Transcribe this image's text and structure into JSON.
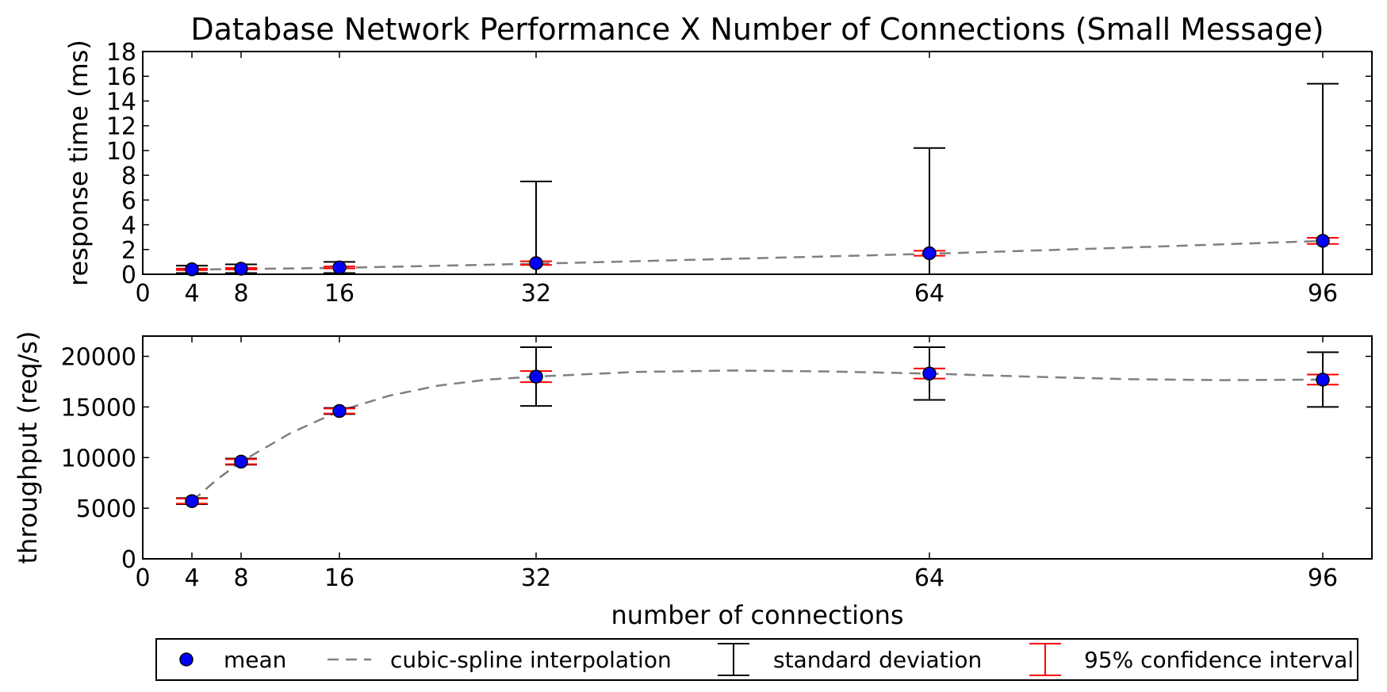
{
  "chart_data": [
    {
      "type": "scatter",
      "title": "Database Network Performance X Number of Connections (Small Message)",
      "xlabel": "",
      "ylabel": "response time (ms)",
      "xlim": [
        0,
        100
      ],
      "ylim": [
        0,
        18
      ],
      "xticks": [
        0,
        4,
        8,
        16,
        32,
        64,
        96
      ],
      "yticks": [
        0,
        2,
        4,
        6,
        8,
        10,
        12,
        14,
        16,
        18
      ],
      "x": [
        4,
        8,
        16,
        32,
        64,
        96
      ],
      "mean": [
        0.4,
        0.45,
        0.55,
        0.9,
        1.7,
        2.7
      ],
      "std": [
        0.3,
        0.35,
        0.45,
        6.6,
        8.5,
        12.7
      ],
      "ci95": [
        0.06,
        0.06,
        0.08,
        0.15,
        0.2,
        0.25
      ],
      "spline": [
        [
          4,
          0.38
        ],
        [
          8,
          0.42
        ],
        [
          16,
          0.52
        ],
        [
          32,
          0.85
        ],
        [
          48,
          1.25
        ],
        [
          64,
          1.65
        ],
        [
          80,
          2.15
        ],
        [
          96,
          2.7
        ]
      ]
    },
    {
      "type": "scatter",
      "title": "",
      "xlabel": "number of connections",
      "ylabel": "throughput (req/s)",
      "xlim": [
        0,
        100
      ],
      "ylim": [
        0,
        22000
      ],
      "xticks": [
        0,
        4,
        8,
        16,
        32,
        64,
        96
      ],
      "yticks": [
        0,
        5000,
        10000,
        15000,
        20000
      ],
      "x": [
        4,
        8,
        16,
        32,
        64,
        96
      ],
      "mean": [
        5700,
        9600,
        14600,
        18000,
        18300,
        17700
      ],
      "std": [
        300,
        300,
        300,
        2900,
        2600,
        2700
      ],
      "ci95": [
        250,
        250,
        250,
        550,
        500,
        500
      ],
      "spline": [
        [
          4,
          5700
        ],
        [
          6,
          7800
        ],
        [
          8,
          9600
        ],
        [
          12,
          12400
        ],
        [
          16,
          14600
        ],
        [
          20,
          16100
        ],
        [
          24,
          17100
        ],
        [
          28,
          17700
        ],
        [
          32,
          18000
        ],
        [
          40,
          18450
        ],
        [
          48,
          18600
        ],
        [
          56,
          18500
        ],
        [
          64,
          18300
        ],
        [
          72,
          18000
        ],
        [
          80,
          17750
        ],
        [
          88,
          17650
        ],
        [
          96,
          17700
        ]
      ]
    }
  ],
  "legend": {
    "position": "bottom",
    "entries": [
      {
        "label": "mean",
        "marker": "circle",
        "color": "#0000ff"
      },
      {
        "label": "cubic-spline interpolation",
        "marker": "dashed-line",
        "color": "#7f7f7f"
      },
      {
        "label": "standard deviation",
        "marker": "errorbar",
        "color": "#000000"
      },
      {
        "label": "95% confidence interval",
        "marker": "errorbar",
        "color": "#ff0000"
      }
    ]
  },
  "colors": {
    "mean": "#0000ff",
    "spline": "#7f7f7f",
    "std": "#000000",
    "ci": "#ff0000"
  }
}
